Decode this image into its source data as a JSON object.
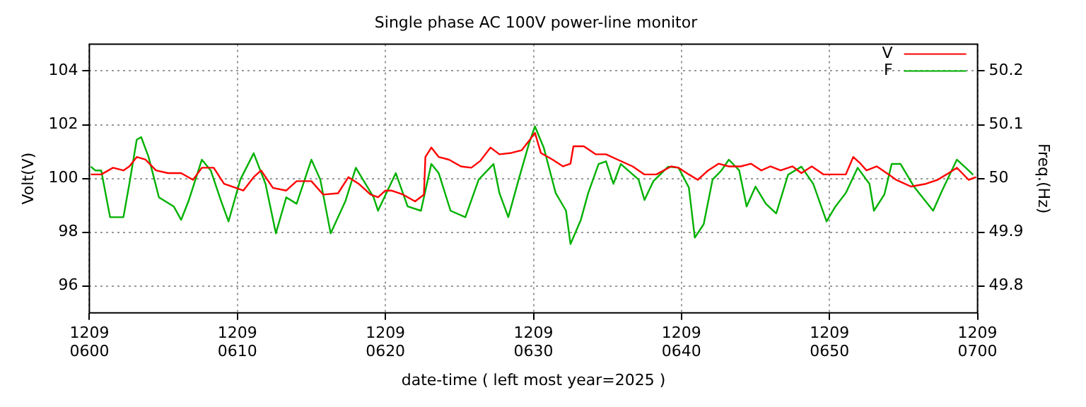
{
  "chart_data": {
    "type": "line",
    "title": "Single phase AC 100V power-line monitor",
    "xlabel": "date-time ( left most year=2025 )",
    "ylabel": "Volt(V)",
    "y2label": "Freq.(Hz)",
    "xlim": [
      "2025-12-09T06:00",
      "2025-12-09T07:00"
    ],
    "xticks": [
      {
        "value": "2025-12-09T06:00",
        "label": "1209\n0600"
      },
      {
        "value": "2025-12-09T06:10",
        "label": "1209\n0610"
      },
      {
        "value": "2025-12-09T06:20",
        "label": "1209\n0620"
      },
      {
        "value": "2025-12-09T06:30",
        "label": "1209\n0630"
      },
      {
        "value": "2025-12-09T06:40",
        "label": "1209\n0640"
      },
      {
        "value": "2025-12-09T06:50",
        "label": "1209\n0650"
      },
      {
        "value": "2025-12-09T07:00",
        "label": "1209\n0700"
      }
    ],
    "ylim": [
      95,
      105
    ],
    "yticks": [
      96,
      98,
      100,
      102,
      104
    ],
    "y2lim": [
      49.75,
      50.25
    ],
    "y2ticks": [
      49.8,
      49.9,
      50,
      50.1,
      50.2
    ],
    "grid": true,
    "legend": "top right",
    "marker": "none",
    "line_style": "solid",
    "series": [
      {
        "name": "V",
        "color": "#ff0000",
        "x": [
          "2025-12-09T06:00:06",
          "2025-12-09T06:00:48",
          "2025-12-09T06:01:36",
          "2025-12-09T06:02:18",
          "2025-12-09T06:02:42",
          "2025-12-09T06:03:12",
          "2025-12-09T06:03:48",
          "2025-12-09T06:04:30",
          "2025-12-09T06:05:18",
          "2025-12-09T06:06:12",
          "2025-12-09T06:07:00",
          "2025-12-09T06:07:36",
          "2025-12-09T06:08:24",
          "2025-12-09T06:09:06",
          "2025-12-09T06:09:54",
          "2025-12-09T06:10:24",
          "2025-12-09T06:11:06",
          "2025-12-09T06:11:36",
          "2025-12-09T06:12:24",
          "2025-12-09T06:13:18",
          "2025-12-09T06:14:00",
          "2025-12-09T06:15:00",
          "2025-12-09T06:15:48",
          "2025-12-09T06:16:48",
          "2025-12-09T06:17:30",
          "2025-12-09T06:18:12",
          "2025-12-09T06:19:00",
          "2025-12-09T06:19:30",
          "2025-12-09T06:20:00",
          "2025-12-09T06:20:24",
          "2025-12-09T06:21:12",
          "2025-12-09T06:22:00",
          "2025-12-09T06:22:36",
          "2025-12-09T06:22:42",
          "2025-12-09T06:23:06",
          "2025-12-09T06:23:36",
          "2025-12-09T06:24:18",
          "2025-12-09T06:25:06",
          "2025-12-09T06:25:48",
          "2025-12-09T06:26:24",
          "2025-12-09T06:27:06",
          "2025-12-09T06:27:42",
          "2025-12-09T06:28:30",
          "2025-12-09T06:29:12",
          "2025-12-09T06:29:42",
          "2025-12-09T06:30:06",
          "2025-12-09T06:30:30",
          "2025-12-09T06:31:18",
          "2025-12-09T06:32:00",
          "2025-12-09T06:32:30",
          "2025-12-09T06:32:42",
          "2025-12-09T06:33:24",
          "2025-12-09T06:34:12",
          "2025-12-09T06:34:54",
          "2025-12-09T06:35:42",
          "2025-12-09T06:36:42",
          "2025-12-09T06:37:30",
          "2025-12-09T06:38:18",
          "2025-12-09T06:39:18",
          "2025-12-09T06:39:48",
          "2025-12-09T06:40:30",
          "2025-12-09T06:41:06",
          "2025-12-09T06:41:48",
          "2025-12-09T06:42:30",
          "2025-12-09T06:43:12",
          "2025-12-09T06:44:00",
          "2025-12-09T06:44:42",
          "2025-12-09T06:45:24",
          "2025-12-09T06:46:00",
          "2025-12-09T06:46:42",
          "2025-12-09T06:47:30",
          "2025-12-09T06:48:06",
          "2025-12-09T06:48:48",
          "2025-12-09T06:49:36",
          "2025-12-09T06:50:24",
          "2025-12-09T06:51:06",
          "2025-12-09T06:51:36",
          "2025-12-09T06:52:06",
          "2025-12-09T06:52:30",
          "2025-12-09T06:53:12",
          "2025-12-09T06:54:00",
          "2025-12-09T06:54:30",
          "2025-12-09T06:55:30",
          "2025-12-09T06:56:30",
          "2025-12-09T06:57:18",
          "2025-12-09T06:57:54",
          "2025-12-09T06:58:36",
          "2025-12-09T06:59:24",
          "2025-12-09T06:59:54"
        ],
        "values": [
          100.15,
          100.15,
          100.4,
          100.3,
          100.45,
          100.8,
          100.7,
          100.3,
          100.2,
          100.2,
          99.95,
          100.4,
          100.4,
          99.8,
          99.65,
          99.55,
          100.05,
          100.3,
          99.65,
          99.55,
          99.9,
          99.9,
          99.4,
          99.45,
          100.05,
          99.8,
          99.4,
          99.3,
          99.55,
          99.55,
          99.4,
          99.15,
          99.4,
          100.8,
          101.15,
          100.8,
          100.7,
          100.45,
          100.4,
          100.65,
          101.15,
          100.9,
          100.95,
          101.05,
          101.4,
          101.7,
          100.95,
          100.7,
          100.45,
          100.55,
          101.2,
          101.2,
          100.9,
          100.9,
          100.7,
          100.45,
          100.15,
          100.15,
          100.45,
          100.4,
          100.15,
          99.95,
          100.3,
          100.55,
          100.45,
          100.45,
          100.55,
          100.3,
          100.45,
          100.3,
          100.45,
          100.2,
          100.45,
          100.15,
          100.15,
          100.15,
          100.8,
          100.55,
          100.3,
          100.45,
          100.15,
          99.95,
          99.7,
          99.8,
          99.95,
          100.15,
          100.4,
          99.95,
          100.05
        ]
      },
      {
        "name": "F",
        "color": "#00b000",
        "axis": "y2",
        "x": [
          "2025-12-09T06:00:06",
          "2025-12-09T06:00:24",
          "2025-12-09T06:00:48",
          "2025-12-09T06:01:24",
          "2025-12-09T06:02:18",
          "2025-12-09T06:02:42",
          "2025-12-09T06:03:12",
          "2025-12-09T06:03:30",
          "2025-12-09T06:04:00",
          "2025-12-09T06:04:42",
          "2025-12-09T06:05:42",
          "2025-12-09T06:06:12",
          "2025-12-09T06:06:42",
          "2025-12-09T06:07:36",
          "2025-12-09T06:08:12",
          "2025-12-09T06:08:54",
          "2025-12-09T06:09:24",
          "2025-12-09T06:10:12",
          "2025-12-09T06:11:06",
          "2025-12-09T06:11:54",
          "2025-12-09T06:12:36",
          "2025-12-09T06:13:18",
          "2025-12-09T06:14:00",
          "2025-12-09T06:15:00",
          "2025-12-09T06:15:36",
          "2025-12-09T06:16:18",
          "2025-12-09T06:17:18",
          "2025-12-09T06:18:00",
          "2025-12-09T06:19:12",
          "2025-12-09T06:19:30",
          "2025-12-09T06:20:42",
          "2025-12-09T06:21:30",
          "2025-12-09T06:22:24",
          "2025-12-09T06:23:06",
          "2025-12-09T06:23:36",
          "2025-12-09T06:24:24",
          "2025-12-09T06:25:24",
          "2025-12-09T06:26:18",
          "2025-12-09T06:27:18",
          "2025-12-09T06:27:42",
          "2025-12-09T06:28:18",
          "2025-12-09T06:29:00",
          "2025-12-09T06:29:42",
          "2025-12-09T06:30:06",
          "2025-12-09T06:30:42",
          "2025-12-09T06:31:30",
          "2025-12-09T06:32:12",
          "2025-12-09T06:32:30",
          "2025-12-09T06:33:12",
          "2025-12-09T06:33:42",
          "2025-12-09T06:34:24",
          "2025-12-09T06:34:54",
          "2025-12-09T06:35:24",
          "2025-12-09T06:35:54",
          "2025-12-09T06:37:06",
          "2025-12-09T06:37:30",
          "2025-12-09T06:38:06",
          "2025-12-09T06:39:06",
          "2025-12-09T06:39:48",
          "2025-12-09T06:40:30",
          "2025-12-09T06:40:54",
          "2025-12-09T06:41:30",
          "2025-12-09T06:42:06",
          "2025-12-09T06:42:42",
          "2025-12-09T06:43:12",
          "2025-12-09T06:43:54",
          "2025-12-09T06:44:24",
          "2025-12-09T06:45:00",
          "2025-12-09T06:45:42",
          "2025-12-09T06:46:24",
          "2025-12-09T06:47:12",
          "2025-12-09T06:48:06",
          "2025-12-09T06:48:54",
          "2025-12-09T06:49:48",
          "2025-12-09T06:50:24",
          "2025-12-09T06:51:06",
          "2025-12-09T06:51:54",
          "2025-12-09T06:52:42",
          "2025-12-09T06:53:00",
          "2025-12-09T06:53:42",
          "2025-12-09T06:54:12",
          "2025-12-09T06:54:48",
          "2025-12-09T06:55:42",
          "2025-12-09T06:57:00",
          "2025-12-09T06:57:36",
          "2025-12-09T06:58:36",
          "2025-12-09T06:59:12",
          "2025-12-09T06:59:42"
        ],
        "values": [
          50.022,
          50.015,
          50.015,
          49.928,
          49.928,
          49.99,
          50.072,
          50.077,
          50.04,
          49.965,
          49.948,
          49.923,
          49.958,
          50.035,
          50.015,
          49.958,
          49.92,
          49.998,
          50.047,
          49.99,
          49.898,
          49.965,
          49.953,
          50.035,
          49.998,
          49.898,
          49.958,
          50.02,
          49.965,
          49.94,
          50.01,
          49.948,
          49.94,
          50.027,
          50.01,
          49.94,
          49.928,
          49.998,
          50.027,
          49.973,
          49.928,
          49.998,
          50.065,
          50.097,
          50.057,
          49.973,
          49.94,
          49.878,
          49.923,
          49.973,
          50.027,
          50.032,
          49.99,
          50.027,
          49.998,
          49.96,
          49.995,
          50.022,
          50.02,
          49.983,
          49.89,
          49.915,
          49.998,
          50.015,
          50.035,
          50.015,
          49.948,
          49.985,
          49.953,
          49.935,
          50.007,
          50.022,
          49.99,
          49.92,
          49.948,
          49.973,
          50.02,
          49.99,
          49.94,
          49.97,
          50.027,
          50.027,
          49.985,
          49.94,
          49.977,
          50.035,
          50.02,
          50.007
        ]
      }
    ]
  }
}
